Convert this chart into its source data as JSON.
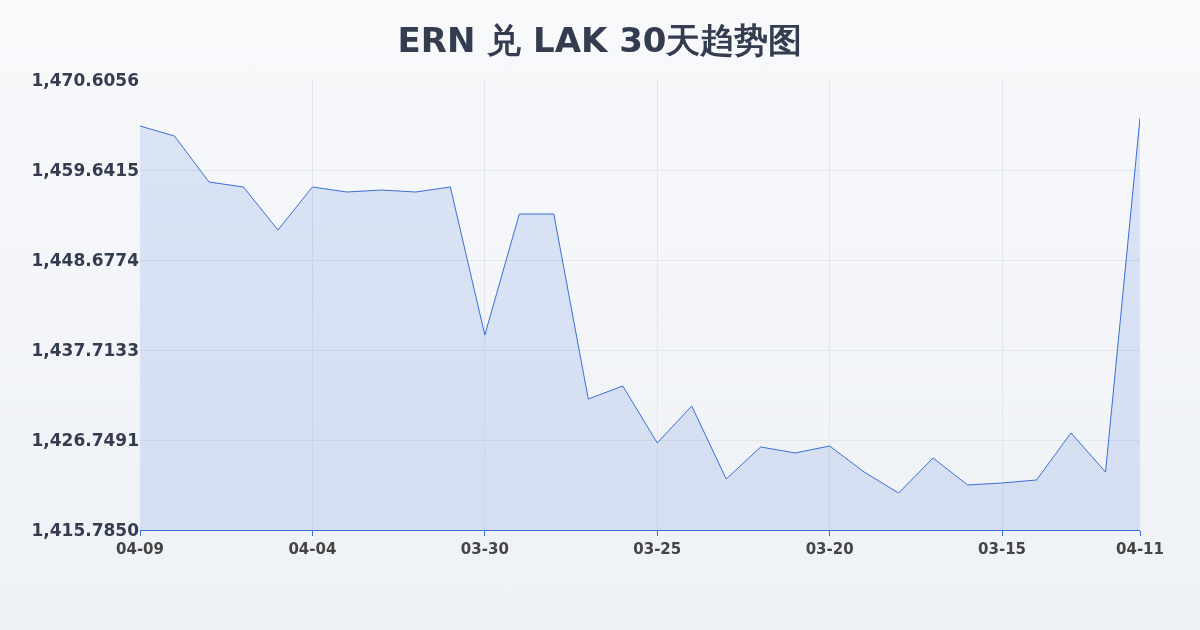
{
  "chart_data": {
    "type": "area",
    "title": "ERN 兑 LAK 30天趋势图",
    "categories": [
      "04-09",
      null,
      null,
      null,
      null,
      "04-04",
      null,
      null,
      null,
      null,
      "03-30",
      null,
      null,
      null,
      null,
      "03-25",
      null,
      null,
      null,
      null,
      "03-20",
      null,
      null,
      null,
      null,
      "03-15",
      null,
      null,
      null,
      "04-11"
    ],
    "values": [
      1465.0,
      1463.78,
      1458.18,
      1457.57,
      1452.33,
      1457.57,
      1456.96,
      1457.2,
      1456.96,
      1457.57,
      1439.54,
      1454.28,
      1454.28,
      1431.74,
      1433.33,
      1426.39,
      1430.89,
      1422.0,
      1425.9,
      1425.17,
      1426.02,
      1422.85,
      1420.29,
      1424.56,
      1421.27,
      1421.51,
      1421.88,
      1427.61,
      1422.85,
      1465.98
    ],
    "color": "#3a6fd8",
    "ylim": [
      1415.785,
      1470.6056
    ],
    "yticks": [
      {
        "value": 1415.785,
        "label": "1,415.7850"
      },
      {
        "value": 1426.7491,
        "label": "1,426.7491"
      },
      {
        "value": 1437.7133,
        "label": "1,437.7133"
      },
      {
        "value": 1448.6774,
        "label": "1,448.6774"
      },
      {
        "value": 1459.6415,
        "label": "1,459.6415"
      },
      {
        "value": 1470.6056,
        "label": "1,470.6056"
      }
    ],
    "grid": true
  }
}
